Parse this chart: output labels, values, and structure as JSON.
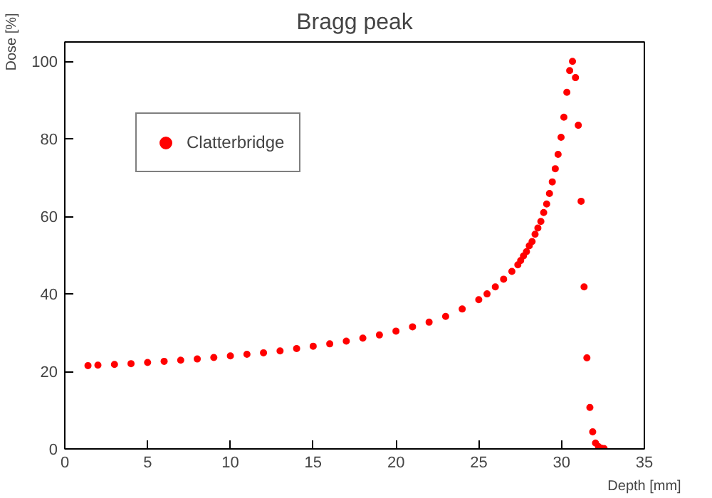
{
  "chart_data": {
    "type": "scatter",
    "title": "Bragg peak",
    "xlabel": "Depth [mm]",
    "ylabel": "Dose [%]",
    "series": [
      {
        "name": "Clatterbridge",
        "color": "#ff0000",
        "x": [
          1.4,
          2,
          3,
          4,
          5,
          6,
          7,
          8,
          9,
          10,
          11,
          12,
          13,
          14,
          15,
          16,
          17,
          18,
          19,
          20,
          21,
          22,
          23,
          24,
          25,
          25.5,
          26,
          26.5,
          27,
          27.36,
          27.53,
          27.7,
          27.88,
          28.05,
          28.22,
          28.4,
          28.57,
          28.75,
          28.92,
          29.1,
          29.27,
          29.44,
          29.62,
          29.79,
          29.97,
          30.14,
          30.32,
          30.49,
          30.66,
          30.84,
          31.01,
          31.18,
          31.36,
          31.53,
          31.71,
          31.88,
          32.05,
          32.23,
          32.4,
          32.57
        ],
        "values": [
          21.5,
          21.6,
          21.8,
          22.0,
          22.3,
          22.6,
          22.9,
          23.2,
          23.6,
          24.0,
          24.4,
          24.8,
          25.3,
          25.9,
          26.5,
          27.1,
          27.8,
          28.6,
          29.4,
          30.4,
          31.5,
          32.7,
          34.2,
          36.1,
          38.5,
          40.0,
          41.8,
          43.8,
          45.8,
          47.5,
          48.6,
          49.8,
          50.9,
          52.4,
          53.5,
          55.4,
          57.0,
          58.7,
          61.0,
          63.2,
          65.9,
          68.9,
          72.3,
          76.0,
          80.4,
          85.6,
          92.0,
          97.6,
          100,
          95.8,
          83.5,
          63.9,
          41.8,
          23.5,
          10.7,
          4.4,
          1.5,
          0.6,
          0.2,
          0.1
        ]
      }
    ],
    "xlim": [
      0,
      35
    ],
    "xticks": [
      0,
      5,
      10,
      15,
      20,
      25,
      30,
      35
    ],
    "ylim": [
      0,
      105
    ],
    "yticks": [
      0,
      20,
      40,
      60,
      80,
      100
    ],
    "grid": false,
    "legend": "top left",
    "marker": "circle"
  }
}
